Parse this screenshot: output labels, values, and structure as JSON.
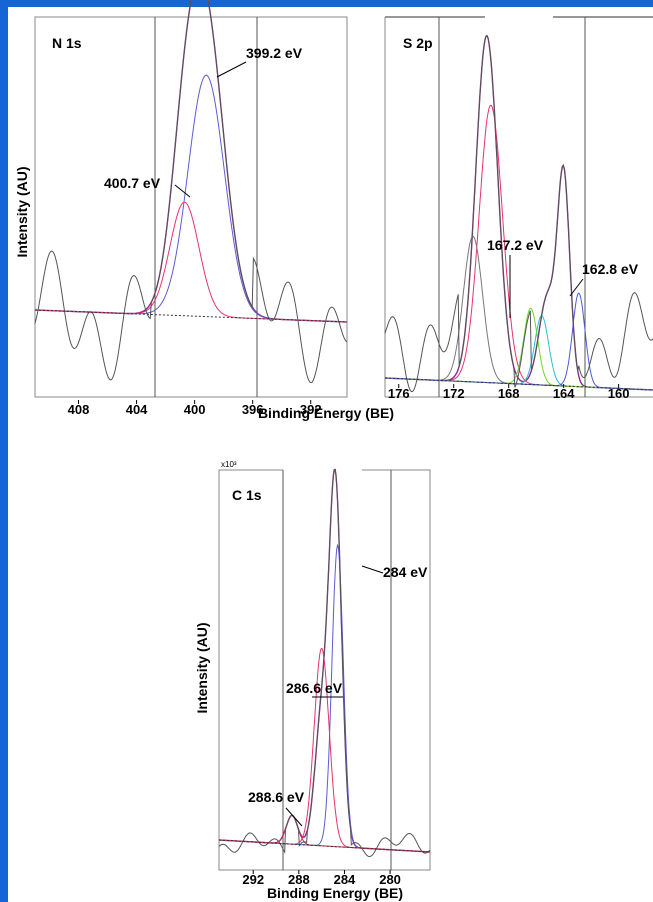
{
  "chart_data": [
    {
      "type": "line",
      "title": "N 1s",
      "xlabel": "Binding Energy (BE)",
      "ylabel": "Intensity (AU)",
      "x_reversed": true,
      "xlim": [
        411,
        389.5
      ],
      "xticks": [
        "408",
        "404",
        "400",
        "396",
        "392"
      ],
      "series": [
        {
          "role": "envelope",
          "color": "#8a2b8f",
          "peaks": [
            {
              "center": 399.2,
              "amp": 1.0,
              "sigma": 1.25
            },
            {
              "center": 400.7,
              "amp": 0.45,
              "sigma": 1.0
            }
          ]
        },
        {
          "role": "component",
          "color": "#5b5bd6",
          "peaks": [
            {
              "center": 399.2,
              "amp": 0.85,
              "sigma": 1.25
            }
          ]
        },
        {
          "role": "component",
          "color": "#e8336b",
          "peaks": [
            {
              "center": 400.7,
              "amp": 0.4,
              "sigma": 1.0
            }
          ]
        },
        {
          "role": "raw",
          "color": "#555555"
        },
        {
          "role": "baseline",
          "color": "#333333",
          "style": "dotted"
        }
      ],
      "annotations": [
        {
          "text": "399.2 eV",
          "x": 399.2
        },
        {
          "text": "400.7 eV",
          "x": 400.7
        }
      ]
    },
    {
      "type": "line",
      "title": "S 2p",
      "xlabel": "Binding Energy (BE)",
      "x_reversed": true,
      "xlim": [
        177,
        157.5
      ],
      "xticks": [
        "176",
        "172",
        "168",
        "164",
        "160"
      ],
      "series": [
        {
          "role": "envelope",
          "color": "#8a2b8f",
          "peaks": [
            {
              "center": 169.6,
              "amp": 1.0,
              "sigma": 0.8
            },
            {
              "center": 164.0,
              "amp": 0.6,
              "sigma": 0.45
            },
            {
              "center": 165.2,
              "amp": 0.25,
              "sigma": 0.6
            }
          ]
        },
        {
          "role": "component",
          "color": "#e8336b",
          "peaks": [
            {
              "center": 169.3,
              "amp": 0.8,
              "sigma": 0.85
            }
          ]
        },
        {
          "role": "component",
          "color": "#777777",
          "peaks": [
            {
              "center": 170.6,
              "amp": 0.42,
              "sigma": 0.7
            }
          ]
        },
        {
          "role": "component",
          "color": "#2bbfd6",
          "peaks": [
            {
              "center": 165.6,
              "amp": 0.2,
              "sigma": 0.5
            }
          ]
        },
        {
          "role": "component",
          "color": "#6fd62b",
          "peaks": [
            {
              "center": 166.4,
              "amp": 0.22,
              "sigma": 0.5
            }
          ]
        },
        {
          "role": "component",
          "color": "#4a5bd6",
          "peaks": [
            {
              "center": 162.9,
              "amp": 0.27,
              "sigma": 0.45
            }
          ]
        },
        {
          "role": "raw",
          "color": "#555555"
        },
        {
          "role": "baseline",
          "color": "#333333",
          "style": "dotted"
        }
      ],
      "annotations": [
        {
          "text": "167.2 eV",
          "x": 167.2
        },
        {
          "text": "162.8 eV",
          "x": 162.8
        }
      ]
    },
    {
      "type": "line",
      "title": "C 1s",
      "multiplier": "x10³",
      "xlabel": "Binding Energy (BE)",
      "ylabel": "Intensity (AU)",
      "x_reversed": true,
      "xlim": [
        295,
        276.5
      ],
      "xticks": [
        "292",
        "288",
        "284",
        "280"
      ],
      "series": [
        {
          "role": "envelope",
          "color": "#8a2b8f",
          "peaks": [
            {
              "center": 284.8,
              "amp": 1.0,
              "sigma": 0.55
            },
            {
              "center": 286.0,
              "amp": 0.35,
              "sigma": 0.6
            },
            {
              "center": 288.6,
              "amp": 0.08,
              "sigma": 0.5
            }
          ]
        },
        {
          "role": "component",
          "color": "#5b5bd6",
          "peaks": [
            {
              "center": 284.6,
              "amp": 0.84,
              "sigma": 0.5
            }
          ]
        },
        {
          "role": "component",
          "color": "#e8336b",
          "peaks": [
            {
              "center": 286.0,
              "amp": 0.55,
              "sigma": 0.65
            }
          ]
        },
        {
          "role": "component",
          "color": "#c0304a",
          "peaks": [
            {
              "center": 288.6,
              "amp": 0.08,
              "sigma": 0.5
            }
          ]
        },
        {
          "role": "raw",
          "color": "#555555"
        },
        {
          "role": "baseline",
          "color": "#333333",
          "style": "dotted"
        }
      ],
      "annotations": [
        {
          "text": "284 eV",
          "x": 284
        },
        {
          "text": "286.6 eV",
          "x": 286.6
        },
        {
          "text": "288.6 eV",
          "x": 288.6
        }
      ]
    }
  ]
}
